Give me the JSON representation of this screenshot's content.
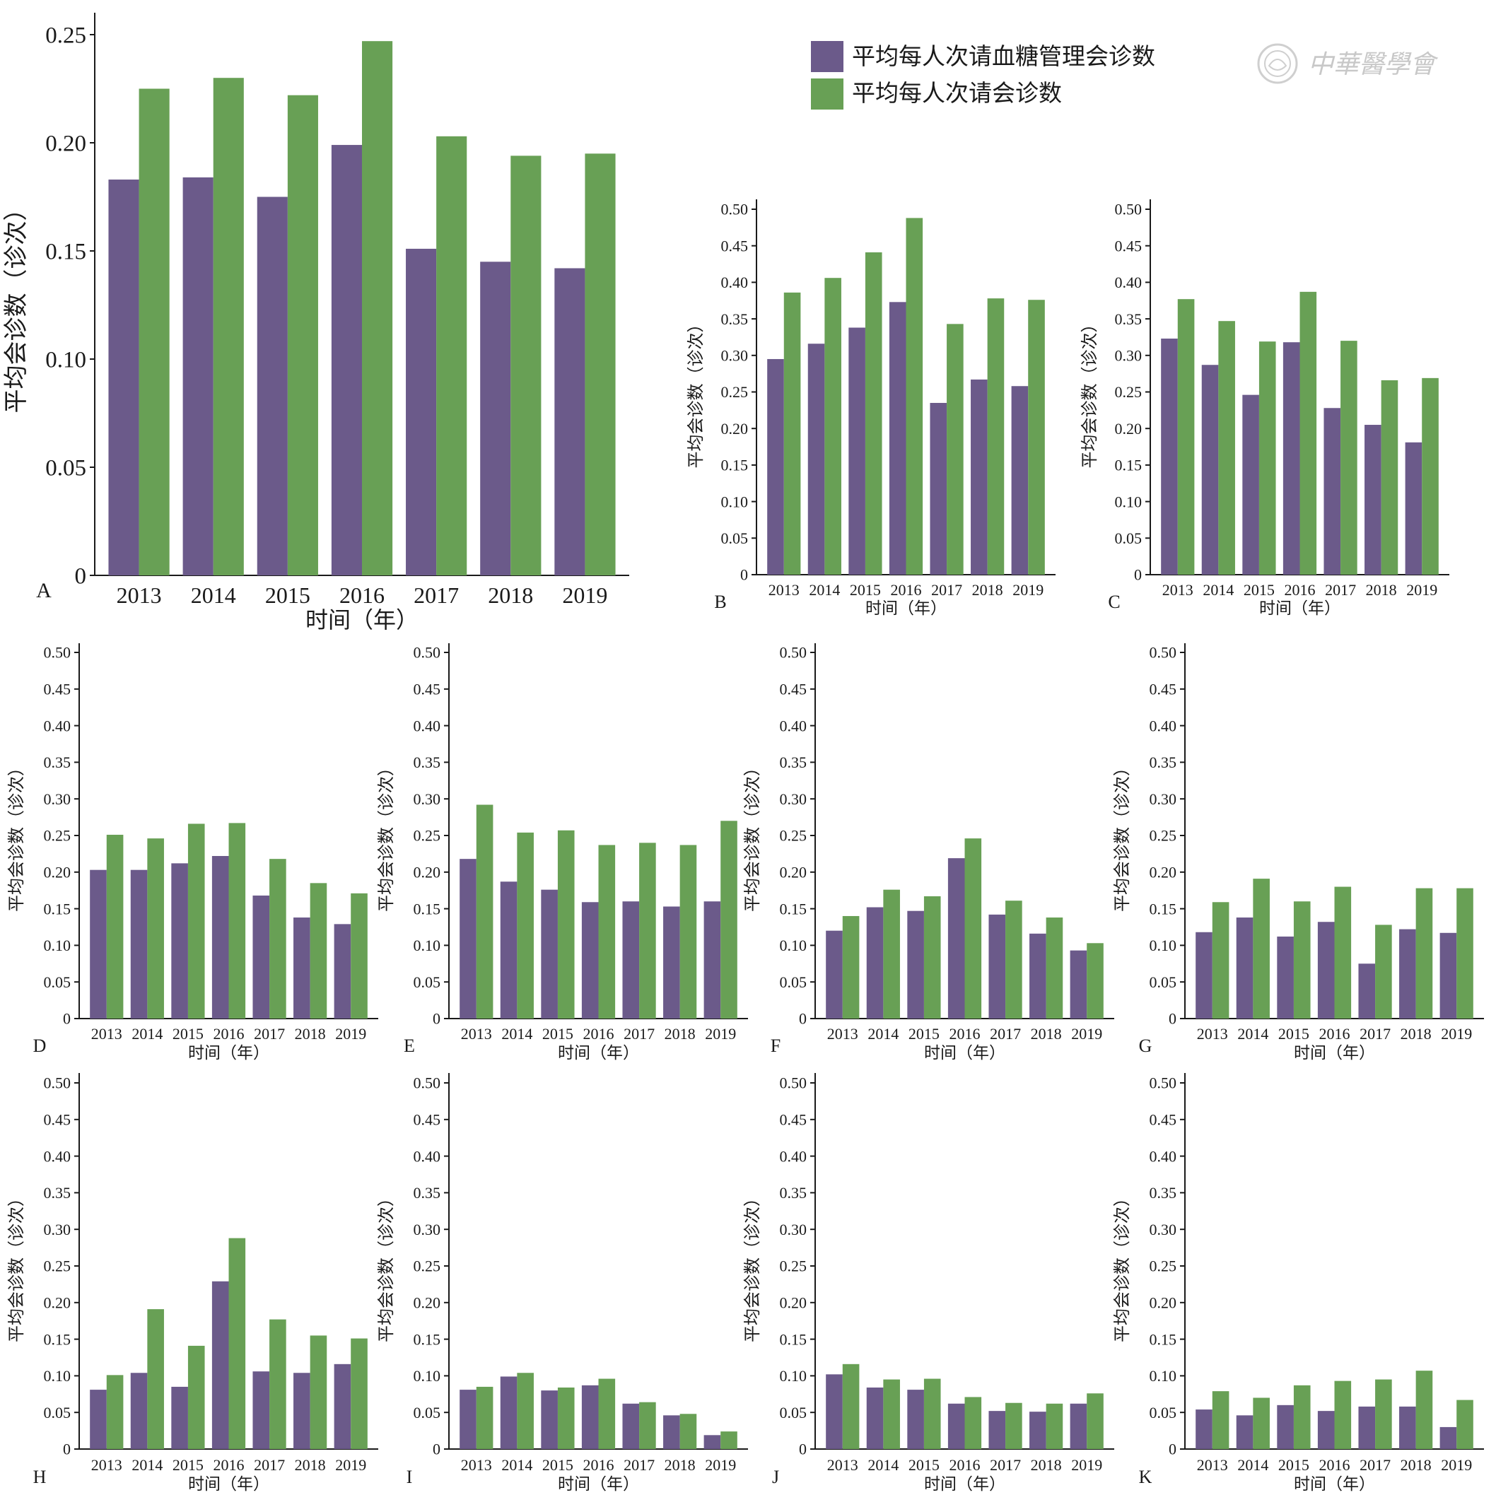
{
  "watermark": {
    "text": "中華醫學會",
    "name": "chinese-medical-association-seal"
  },
  "legend": {
    "items": [
      {
        "label": "平均每人次请血糖管理会诊数",
        "color": "#6b5a8a"
      },
      {
        "label": "平均每人次请会诊数",
        "color": "#68a055"
      }
    ]
  },
  "chart_data": [
    {
      "panel": "A",
      "type": "bar",
      "categories": [
        "2013",
        "2014",
        "2015",
        "2016",
        "2017",
        "2018",
        "2019"
      ],
      "xlabel": "时间（年）",
      "ylabel": "平均会诊数（诊次）",
      "ylim": [
        0,
        0.25
      ],
      "yticks": [
        "0",
        "0.05",
        "0.10",
        "0.15",
        "0.20",
        "0.25"
      ],
      "series": [
        {
          "name": "平均每人次请血糖管理会诊数",
          "values": [
            0.183,
            0.184,
            0.175,
            0.199,
            0.151,
            0.145,
            0.142
          ]
        },
        {
          "name": "平均每人次请会诊数",
          "values": [
            0.225,
            0.23,
            0.222,
            0.247,
            0.203,
            0.194,
            0.195
          ]
        }
      ]
    },
    {
      "panel": "B",
      "type": "bar",
      "categories": [
        "2013",
        "2014",
        "2015",
        "2016",
        "2017",
        "2018",
        "2019"
      ],
      "xlabel": "时间（年）",
      "ylabel": "平均会诊数（诊次）",
      "ylim": [
        0,
        0.5
      ],
      "yticks": [
        "0",
        "0.05",
        "0.10",
        "0.15",
        "0.20",
        "0.25",
        "0.30",
        "0.35",
        "0.40",
        "0.45",
        "0.50"
      ],
      "series": [
        {
          "name": "平均每人次请血糖管理会诊数",
          "values": [
            0.295,
            0.316,
            0.338,
            0.373,
            0.235,
            0.267,
            0.258
          ]
        },
        {
          "name": "平均每人次请会诊数",
          "values": [
            0.386,
            0.406,
            0.441,
            0.488,
            0.343,
            0.378,
            0.376
          ]
        }
      ]
    },
    {
      "panel": "C",
      "type": "bar",
      "categories": [
        "2013",
        "2014",
        "2015",
        "2016",
        "2017",
        "2018",
        "2019"
      ],
      "xlabel": "时间（年）",
      "ylabel": "平均会诊数（诊次）",
      "ylim": [
        0,
        0.5
      ],
      "yticks": [
        "0",
        "0.05",
        "0.10",
        "0.15",
        "0.20",
        "0.25",
        "0.30",
        "0.35",
        "0.40",
        "0.45",
        "0.50"
      ],
      "series": [
        {
          "name": "平均每人次请血糖管理会诊数",
          "values": [
            0.323,
            0.287,
            0.246,
            0.318,
            0.228,
            0.205,
            0.181
          ]
        },
        {
          "name": "平均每人次请会诊数",
          "values": [
            0.377,
            0.347,
            0.319,
            0.387,
            0.32,
            0.266,
            0.269
          ]
        }
      ]
    },
    {
      "panel": "D",
      "type": "bar",
      "categories": [
        "2013",
        "2014",
        "2015",
        "2016",
        "2017",
        "2018",
        "2019"
      ],
      "xlabel": "时间（年）",
      "ylabel": "平均会诊数（诊次）",
      "ylim": [
        0,
        0.5
      ],
      "yticks": [
        "0",
        "0.05",
        "0.10",
        "0.15",
        "0.20",
        "0.25",
        "0.30",
        "0.35",
        "0.40",
        "0.45",
        "0.50"
      ],
      "series": [
        {
          "name": "平均每人次请血糖管理会诊数",
          "values": [
            0.203,
            0.203,
            0.212,
            0.222,
            0.168,
            0.138,
            0.129
          ]
        },
        {
          "name": "平均每人次请会诊数",
          "values": [
            0.251,
            0.246,
            0.266,
            0.267,
            0.218,
            0.185,
            0.171
          ]
        }
      ]
    },
    {
      "panel": "E",
      "type": "bar",
      "categories": [
        "2013",
        "2014",
        "2015",
        "2016",
        "2017",
        "2018",
        "2019"
      ],
      "xlabel": "时间（年）",
      "ylabel": "平均会诊数（诊次）",
      "ylim": [
        0,
        0.5
      ],
      "yticks": [
        "0",
        "0.05",
        "0.10",
        "0.15",
        "0.20",
        "0.25",
        "0.30",
        "0.35",
        "0.40",
        "0.45",
        "0.50"
      ],
      "series": [
        {
          "name": "平均每人次请血糖管理会诊数",
          "values": [
            0.218,
            0.187,
            0.176,
            0.159,
            0.16,
            0.153,
            0.16
          ]
        },
        {
          "name": "平均每人次请会诊数",
          "values": [
            0.292,
            0.254,
            0.257,
            0.237,
            0.24,
            0.237,
            0.27
          ]
        }
      ]
    },
    {
      "panel": "F",
      "type": "bar",
      "categories": [
        "2013",
        "2014",
        "2015",
        "2016",
        "2017",
        "2018",
        "2019"
      ],
      "xlabel": "时间（年）",
      "ylabel": "平均会诊数（诊次）",
      "ylim": [
        0,
        0.5
      ],
      "yticks": [
        "0",
        "0.05",
        "0.10",
        "0.15",
        "0.20",
        "0.25",
        "0.30",
        "0.35",
        "0.40",
        "0.45",
        "0.50"
      ],
      "series": [
        {
          "name": "平均每人次请血糖管理会诊数",
          "values": [
            0.12,
            0.152,
            0.147,
            0.219,
            0.142,
            0.116,
            0.093
          ]
        },
        {
          "name": "平均每人次请会诊数",
          "values": [
            0.14,
            0.176,
            0.167,
            0.246,
            0.161,
            0.138,
            0.103
          ]
        }
      ]
    },
    {
      "panel": "G",
      "type": "bar",
      "categories": [
        "2013",
        "2014",
        "2015",
        "2016",
        "2017",
        "2018",
        "2019"
      ],
      "xlabel": "时间（年）",
      "ylabel": "平均会诊数（诊次）",
      "ylim": [
        0,
        0.5
      ],
      "yticks": [
        "0",
        "0.05",
        "0.10",
        "0.15",
        "0.20",
        "0.25",
        "0.30",
        "0.35",
        "0.40",
        "0.45",
        "0.50"
      ],
      "series": [
        {
          "name": "平均每人次请血糖管理会诊数",
          "values": [
            0.118,
            0.138,
            0.112,
            0.132,
            0.075,
            0.122,
            0.117
          ]
        },
        {
          "name": "平均每人次请会诊数",
          "values": [
            0.159,
            0.191,
            0.16,
            0.18,
            0.128,
            0.178,
            0.178
          ]
        }
      ]
    },
    {
      "panel": "H",
      "type": "bar",
      "categories": [
        "2013",
        "2014",
        "2015",
        "2016",
        "2017",
        "2018",
        "2019"
      ],
      "xlabel": "时间（年）",
      "ylabel": "平均会诊数（诊次）",
      "ylim": [
        0,
        0.5
      ],
      "yticks": [
        "0",
        "0.05",
        "0.10",
        "0.15",
        "0.20",
        "0.25",
        "0.30",
        "0.35",
        "0.40",
        "0.45",
        "0.50"
      ],
      "series": [
        {
          "name": "平均每人次请血糖管理会诊数",
          "values": [
            0.081,
            0.104,
            0.085,
            0.229,
            0.106,
            0.104,
            0.116
          ]
        },
        {
          "name": "平均每人次请会诊数",
          "values": [
            0.101,
            0.191,
            0.141,
            0.288,
            0.177,
            0.155,
            0.151
          ]
        }
      ]
    },
    {
      "panel": "I",
      "type": "bar",
      "categories": [
        "2013",
        "2014",
        "2015",
        "2016",
        "2017",
        "2018",
        "2019"
      ],
      "xlabel": "时间（年）",
      "ylabel": "平均会诊数（诊次）",
      "ylim": [
        0,
        0.5
      ],
      "yticks": [
        "0",
        "0.05",
        "0.10",
        "0.15",
        "0.20",
        "0.25",
        "0.30",
        "0.35",
        "0.40",
        "0.45",
        "0.50"
      ],
      "series": [
        {
          "name": "平均每人次请血糖管理会诊数",
          "values": [
            0.081,
            0.099,
            0.08,
            0.087,
            0.062,
            0.046,
            0.019
          ]
        },
        {
          "name": "平均每人次请会诊数",
          "values": [
            0.085,
            0.104,
            0.084,
            0.096,
            0.064,
            0.048,
            0.024
          ]
        }
      ]
    },
    {
      "panel": "J",
      "type": "bar",
      "categories": [
        "2013",
        "2014",
        "2015",
        "2016",
        "2017",
        "2018",
        "2019"
      ],
      "xlabel": "时间（年）",
      "ylabel": "平均会诊数（诊次）",
      "ylim": [
        0,
        0.5
      ],
      "yticks": [
        "0",
        "0.05",
        "0.10",
        "0.15",
        "0.20",
        "0.25",
        "0.30",
        "0.35",
        "0.40",
        "0.45",
        "0.50"
      ],
      "series": [
        {
          "name": "平均每人次请血糖管理会诊数",
          "values": [
            0.102,
            0.084,
            0.081,
            0.062,
            0.052,
            0.051,
            0.062
          ]
        },
        {
          "name": "平均每人次请会诊数",
          "values": [
            0.116,
            0.095,
            0.096,
            0.071,
            0.063,
            0.062,
            0.076
          ]
        }
      ]
    },
    {
      "panel": "K",
      "type": "bar",
      "categories": [
        "2013",
        "2014",
        "2015",
        "2016",
        "2017",
        "2018",
        "2019"
      ],
      "xlabel": "时间（年）",
      "ylabel": "平均会诊数（诊次）",
      "ylim": [
        0,
        0.5
      ],
      "yticks": [
        "0",
        "0.05",
        "0.10",
        "0.15",
        "0.20",
        "0.25",
        "0.30",
        "0.35",
        "0.40",
        "0.45",
        "0.50"
      ],
      "series": [
        {
          "name": "平均每人次请血糖管理会诊数",
          "values": [
            0.054,
            0.046,
            0.06,
            0.052,
            0.058,
            0.058,
            0.03
          ]
        },
        {
          "name": "平均每人次请会诊数",
          "values": [
            0.079,
            0.07,
            0.087,
            0.093,
            0.095,
            0.107,
            0.067
          ]
        }
      ]
    }
  ]
}
